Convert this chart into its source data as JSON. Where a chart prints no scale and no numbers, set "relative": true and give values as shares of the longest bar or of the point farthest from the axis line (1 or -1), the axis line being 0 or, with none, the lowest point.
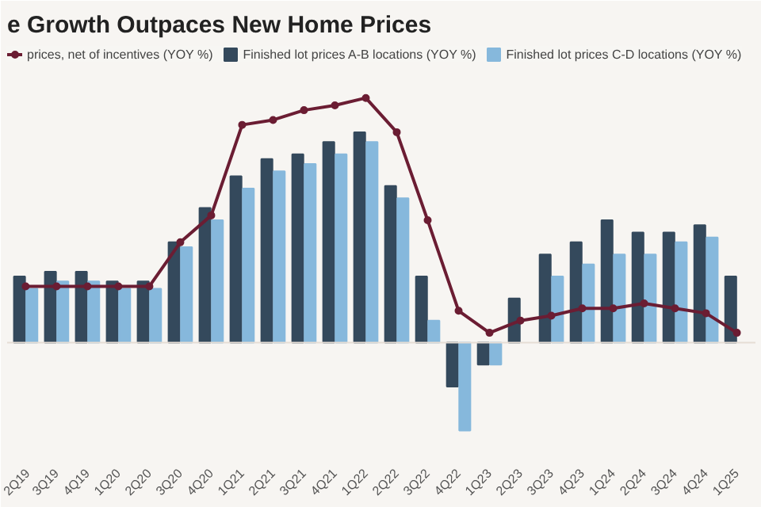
{
  "chart_data": {
    "type": "bar",
    "title": "e Growth Outpaces New Home Prices",
    "relative": true,
    "legend": "top",
    "grid": false,
    "categories": [
      "2Q19",
      "3Q19",
      "4Q19",
      "1Q20",
      "2Q20",
      "3Q20",
      "4Q20",
      "1Q21",
      "2Q21",
      "3Q21",
      "4Q21",
      "1Q22",
      "2Q22",
      "3Q22",
      "4Q22",
      "1Q23",
      "2Q23",
      "3Q23",
      "4Q23",
      "1Q24",
      "2Q24",
      "3Q24",
      "4Q24",
      "1Q25"
    ],
    "series": [
      {
        "name": "prices, net of incentives (YOY %)",
        "type": "line",
        "marker": "circle",
        "color": "#6b1d33",
        "values": [
          0.23,
          0.23,
          0.23,
          0.23,
          0.23,
          0.41,
          0.52,
          0.89,
          0.91,
          0.95,
          0.97,
          1,
          0.86,
          0.5,
          0.13,
          0.04,
          0.09,
          0.11,
          0.14,
          0.14,
          0.16,
          0.14,
          0.12,
          0.04
        ]
      },
      {
        "name": "Finished lot prices A-B locations (YOY %)",
        "color": "#34495c",
        "values": [
          0.27,
          0.29,
          0.29,
          0.25,
          0.25,
          0.41,
          0.55,
          0.68,
          0.75,
          0.77,
          0.82,
          0.86,
          0.64,
          0.27,
          -0.18,
          -0.09,
          0.18,
          0.36,
          0.41,
          0.5,
          0.45,
          0.45,
          0.48,
          0.27
        ]
      },
      {
        "name": "Finished lot prices C-D locations (YOY %)",
        "color": "#86b8dc",
        "values": [
          0.22,
          0.25,
          0.25,
          0.22,
          0.22,
          0.39,
          0.5,
          0.63,
          0.7,
          0.73,
          0.77,
          0.82,
          0.59,
          0.09,
          -0.36,
          -0.09,
          null,
          0.27,
          0.32,
          0.36,
          0.36,
          0.41,
          0.43,
          null
        ]
      }
    ]
  }
}
